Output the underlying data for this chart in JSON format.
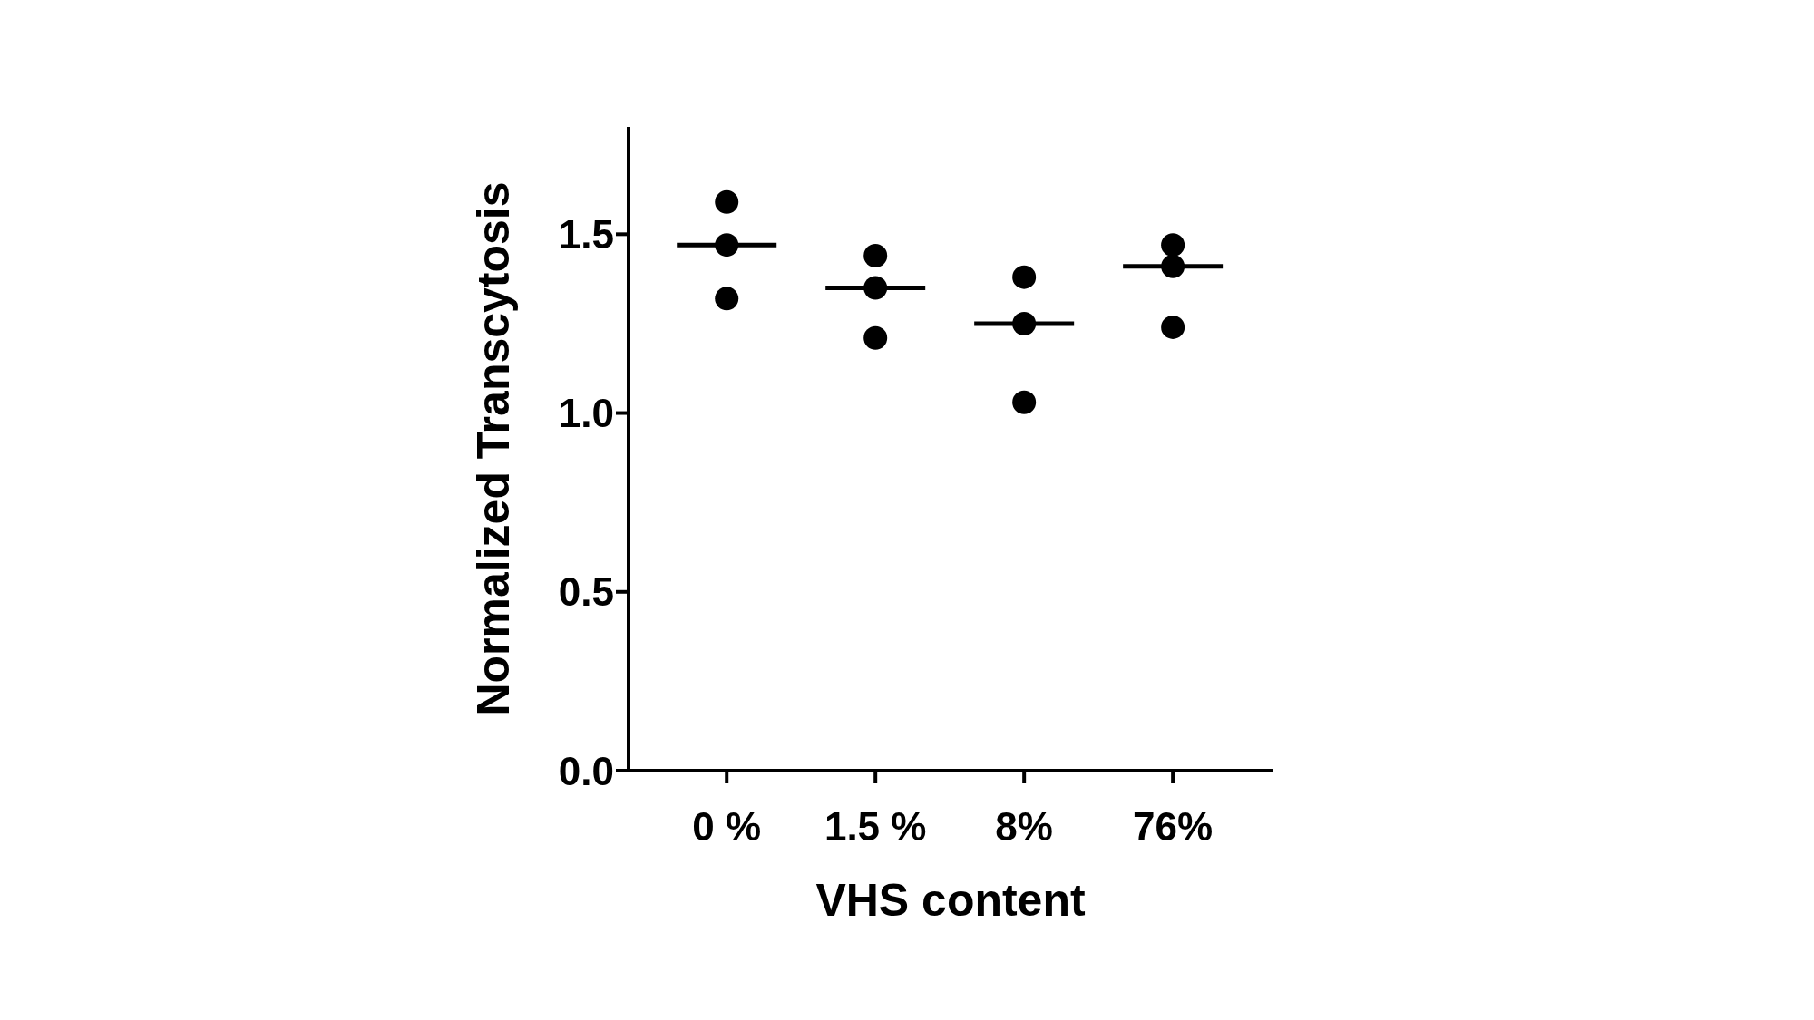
{
  "chart_data": {
    "type": "scatter",
    "xlabel": "VHS content",
    "ylabel": "Normalized Transcytosis",
    "categories": [
      "0 %",
      "1.5 %",
      "8%",
      "76%"
    ],
    "ylim": [
      0,
      1.8
    ],
    "yticks": [
      {
        "value": 0,
        "label": "0.0"
      },
      {
        "value": 0.5,
        "label": "0.5"
      },
      {
        "value": 1,
        "label": "1.0"
      },
      {
        "value": 1.5,
        "label": "1.5"
      }
    ],
    "marker": "circle",
    "series": [
      {
        "type": "scatter",
        "color": "#000000",
        "x": [
          "0 %",
          "0 %",
          "0 %",
          "1.5 %",
          "1.5 %",
          "1.5 %",
          "8%",
          "8%",
          "8%",
          "76%",
          "76%",
          "76%"
        ],
        "values": [
          1.59,
          1.47,
          1.32,
          1.44,
          1.35,
          1.21,
          1.38,
          1.25,
          1.03,
          1.47,
          1.41,
          1.24
        ]
      },
      {
        "type": "box",
        "color": "#000000",
        "boxes": [
          {
            "low": 1.47,
            "q1": 1.47,
            "median": 1.47,
            "q3": 1.47,
            "high": 1.47
          },
          {
            "low": 1.35,
            "q1": 1.35,
            "median": 1.35,
            "q3": 1.35,
            "high": 1.35
          },
          {
            "low": 1.25,
            "q1": 1.25,
            "median": 1.25,
            "q3": 1.25,
            "high": 1.25
          },
          {
            "low": 1.41,
            "q1": 1.41,
            "median": 1.41,
            "q3": 1.41,
            "high": 1.41
          }
        ]
      }
    ]
  }
}
